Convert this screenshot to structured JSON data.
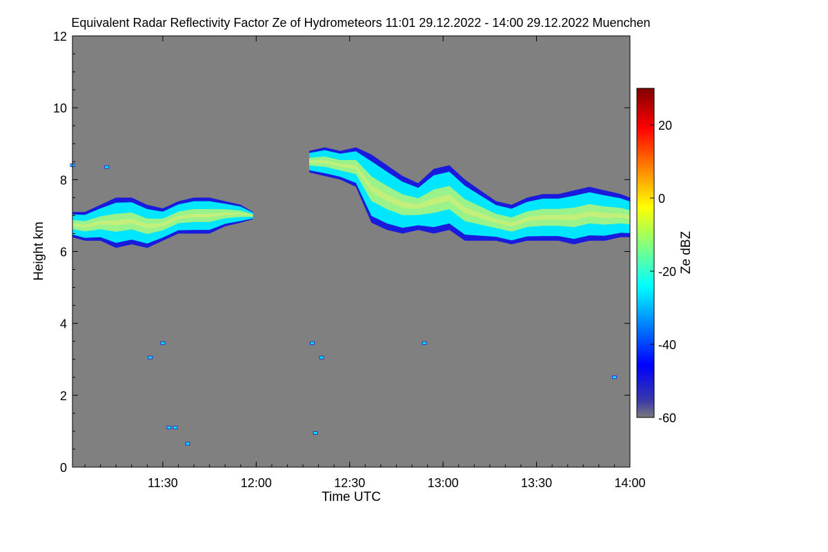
{
  "chart_data": {
    "type": "heatmap",
    "title": "Equivalent Radar Reflectivity Factor Ze of Hydrometeors   11:01 29.12.2022 - 14:00 29.12.2022 Muenchen",
    "xlabel": "Time UTC",
    "ylabel": "Height km",
    "colorbar_label": "Ze dBZ",
    "x_range_minutes": [
      661,
      840
    ],
    "x_tick_minutes": [
      690,
      720,
      750,
      780,
      810,
      840
    ],
    "x_tick_labels": [
      "11:30",
      "12:00",
      "12:30",
      "13:00",
      "13:30",
      "14:00"
    ],
    "y_range": [
      0,
      12
    ],
    "y_ticks": [
      0,
      2,
      4,
      6,
      8,
      10,
      12
    ],
    "colorbar_range": [
      -60,
      30
    ],
    "colorbar_ticks": [
      20,
      0,
      -20,
      -40,
      -60
    ],
    "colorbar_tick_labels": [
      "20",
      "0",
      "-20",
      "-40",
      "-60"
    ],
    "colors": {
      "background": "#808080",
      "cloud_edge": "#1a1adc",
      "cloud_mid": "#00e6ff",
      "cloud_core": "#9af28a",
      "cloud_peak": "#e6ee70"
    },
    "cloud_layers": [
      {
        "name": "morning-layer",
        "time_minutes": [
          661,
          665,
          670,
          675,
          680,
          685,
          690,
          695,
          700,
          705,
          710,
          715,
          719
        ],
        "top_km": [
          7.1,
          7.1,
          7.3,
          7.5,
          7.5,
          7.3,
          7.2,
          7.4,
          7.5,
          7.5,
          7.4,
          7.3,
          7.1
        ],
        "bottom_km": [
          6.4,
          6.3,
          6.3,
          6.1,
          6.2,
          6.1,
          6.3,
          6.5,
          6.5,
          6.5,
          6.7,
          6.8,
          6.9
        ],
        "peak_ze_dbz": -10
      },
      {
        "name": "afternoon-layer",
        "time_minutes": [
          737,
          742,
          747,
          752,
          757,
          762,
          767,
          772,
          777,
          782,
          787,
          792,
          797,
          802,
          807,
          812,
          817,
          822,
          827,
          832,
          837,
          840
        ],
        "top_km": [
          8.8,
          8.9,
          8.8,
          8.9,
          8.7,
          8.4,
          8.1,
          7.9,
          8.3,
          8.4,
          8.0,
          7.7,
          7.4,
          7.3,
          7.5,
          7.6,
          7.6,
          7.7,
          7.8,
          7.7,
          7.6,
          7.5
        ],
        "bottom_km": [
          8.2,
          8.1,
          8.0,
          7.8,
          6.8,
          6.6,
          6.5,
          6.6,
          6.5,
          6.6,
          6.3,
          6.3,
          6.3,
          6.2,
          6.3,
          6.3,
          6.3,
          6.2,
          6.3,
          6.3,
          6.4,
          6.4
        ],
        "peak_ze_dbz": -10
      }
    ],
    "sparse_echoes": [
      {
        "time_minutes": 686,
        "height_km": 3.05
      },
      {
        "time_minutes": 690,
        "height_km": 3.45
      },
      {
        "time_minutes": 692,
        "height_km": 1.1
      },
      {
        "time_minutes": 694,
        "height_km": 1.1
      },
      {
        "time_minutes": 698,
        "height_km": 0.65
      },
      {
        "time_minutes": 738,
        "height_km": 3.45
      },
      {
        "time_minutes": 741,
        "height_km": 3.05
      },
      {
        "time_minutes": 739,
        "height_km": 0.95
      },
      {
        "time_minutes": 774,
        "height_km": 3.45
      },
      {
        "time_minutes": 661,
        "height_km": 8.4
      },
      {
        "time_minutes": 672,
        "height_km": 8.35
      },
      {
        "time_minutes": 835,
        "height_km": 2.5
      }
    ]
  }
}
